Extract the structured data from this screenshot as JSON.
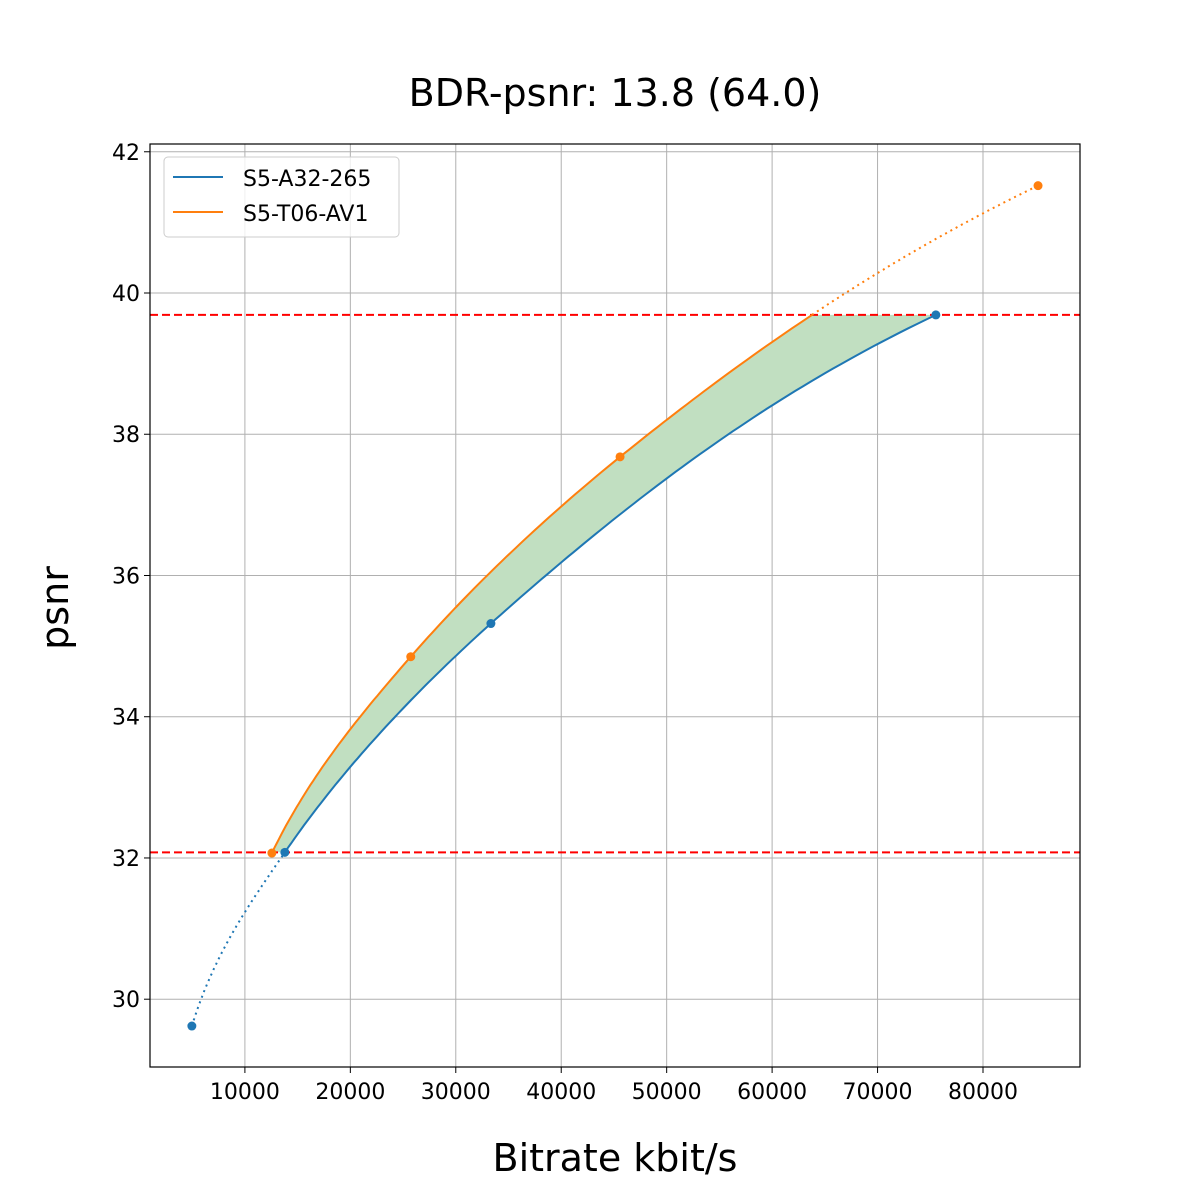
{
  "chart_data": {
    "type": "line",
    "title": "BDR-psnr: 13.8 (64.0)",
    "xlabel": "Bitrate kbit/s",
    "ylabel": "psnr",
    "xlim": [
      1000,
      89200
    ],
    "ylim": [
      29.04,
      42.11
    ],
    "xticks": [
      10000,
      20000,
      30000,
      40000,
      50000,
      60000,
      70000,
      80000
    ],
    "yticks": [
      30,
      32,
      34,
      36,
      38,
      40,
      42
    ],
    "grid": true,
    "legend_position": "top-left",
    "series": [
      {
        "name": "S5-A32-265",
        "color": "#1f77b4",
        "x": [
          4970,
          13790,
          33330,
          75530
        ],
        "y": [
          29.62,
          32.08,
          35.32,
          39.69
        ]
      },
      {
        "name": "S5-T06-AV1",
        "color": "#ff7f0e",
        "x": [
          12560,
          25730,
          45580,
          85220
        ],
        "y": [
          32.07,
          34.85,
          37.68,
          41.52
        ]
      }
    ],
    "reference_lines": {
      "orientation": "horizontal",
      "style": "dashed",
      "color": "#ff0000",
      "y": [
        32.08,
        39.69
      ]
    },
    "fill": {
      "color": "#c1dfc1",
      "between": "series",
      "y_range": [
        32.08,
        39.69
      ]
    }
  }
}
